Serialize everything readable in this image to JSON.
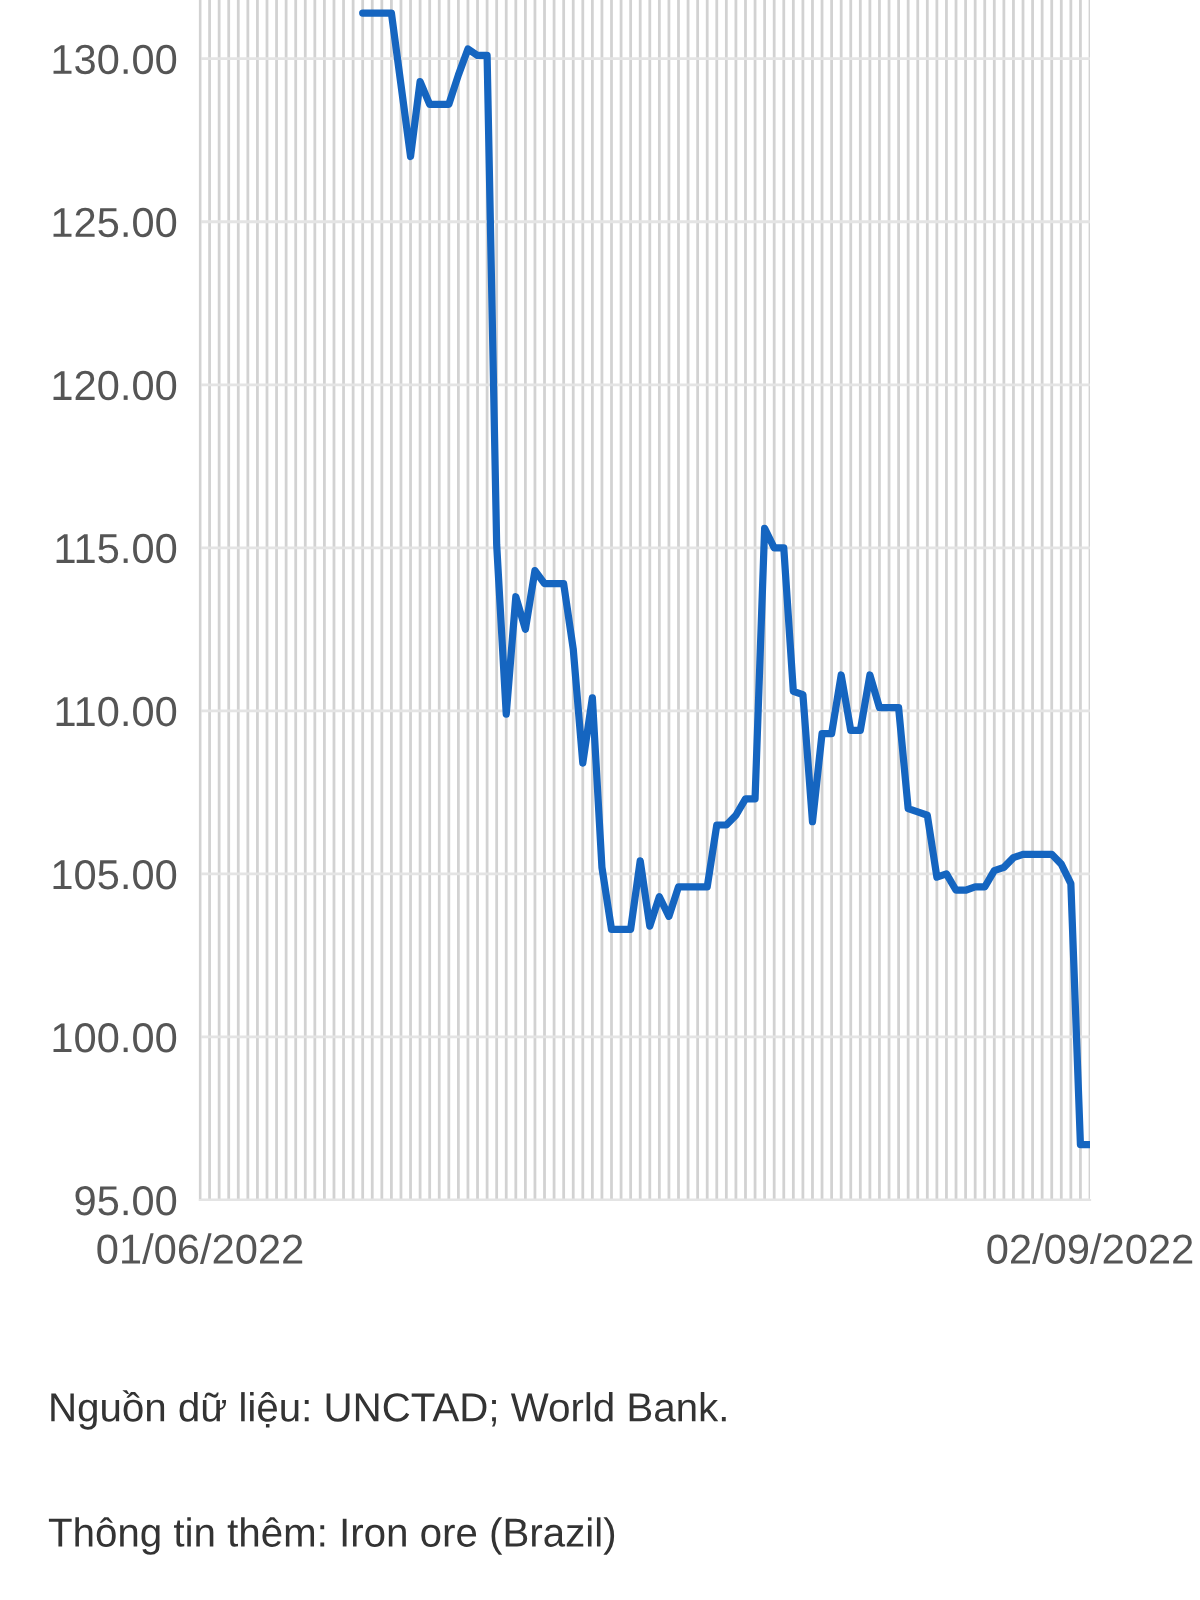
{
  "chart_data": {
    "type": "line",
    "x": [
      "2022-06-18",
      "2022-06-21",
      "2022-06-23",
      "2022-06-24",
      "2022-06-25",
      "2022-06-27",
      "2022-06-28",
      "2022-06-29",
      "2022-06-30",
      "2022-07-01",
      "2022-07-02",
      "2022-07-03",
      "2022-07-04",
      "2022-07-05",
      "2022-07-06",
      "2022-07-07",
      "2022-07-09",
      "2022-07-10",
      "2022-07-11",
      "2022-07-12",
      "2022-07-13",
      "2022-07-14",
      "2022-07-16",
      "2022-07-17",
      "2022-07-18",
      "2022-07-19",
      "2022-07-20",
      "2022-07-21",
      "2022-07-24",
      "2022-07-25",
      "2022-07-26",
      "2022-07-27",
      "2022-07-28",
      "2022-07-29",
      "2022-07-30",
      "2022-07-31",
      "2022-08-01",
      "2022-08-02",
      "2022-08-03",
      "2022-08-04",
      "2022-08-05",
      "2022-08-06",
      "2022-08-07",
      "2022-08-08",
      "2022-08-09",
      "2022-08-10",
      "2022-08-11",
      "2022-08-13",
      "2022-08-14",
      "2022-08-15",
      "2022-08-16",
      "2022-08-17",
      "2022-08-18",
      "2022-08-19",
      "2022-08-20",
      "2022-08-21",
      "2022-08-22",
      "2022-08-23",
      "2022-08-24",
      "2022-08-25",
      "2022-08-26",
      "2022-08-29",
      "2022-08-30",
      "2022-08-31",
      "2022-09-01",
      "2022-09-02"
    ],
    "series": [
      {
        "color": "#1565c0",
        "values": [
          131.4,
          131.4,
          127.0,
          129.3,
          128.6,
          128.6,
          129.5,
          130.3,
          130.1,
          130.1,
          115.1,
          109.9,
          113.5,
          112.5,
          114.3,
          113.9,
          113.9,
          111.9,
          108.4,
          110.4,
          105.2,
          103.3,
          103.3,
          105.4,
          103.4,
          104.3,
          103.7,
          104.6,
          104.6,
          106.5,
          106.5,
          106.8,
          107.3,
          107.3,
          115.6,
          115.0,
          115.0,
          110.6,
          110.5,
          106.6,
          109.3,
          109.3,
          111.1,
          109.4,
          109.4,
          111.1,
          110.1,
          110.1,
          107.0,
          106.9,
          106.8,
          104.9,
          105.0,
          104.5,
          104.5,
          104.6,
          104.6,
          105.1,
          105.2,
          105.5,
          105.6,
          105.6,
          105.3,
          104.7,
          96.7,
          96.7
        ]
      }
    ],
    "xlim": [
      "2022-06-01",
      "2022-09-02"
    ],
    "xticks": [
      {
        "value": "2022-06-01",
        "label": "01/06/2022"
      },
      {
        "value": "2022-06-02",
        "label": null
      },
      {
        "value": "2022-06-03",
        "label": null
      },
      {
        "value": "2022-06-04",
        "label": null
      },
      {
        "value": "2022-06-05",
        "label": null
      },
      {
        "value": "2022-06-06",
        "label": null
      },
      {
        "value": "2022-06-07",
        "label": null
      },
      {
        "value": "2022-06-08",
        "label": null
      },
      {
        "value": "2022-06-09",
        "label": null
      },
      {
        "value": "2022-06-10",
        "label": null
      },
      {
        "value": "2022-06-11",
        "label": null
      },
      {
        "value": "2022-06-12",
        "label": null
      },
      {
        "value": "2022-06-13",
        "label": null
      },
      {
        "value": "2022-06-14",
        "label": null
      },
      {
        "value": "2022-06-15",
        "label": null
      },
      {
        "value": "2022-06-16",
        "label": null
      },
      {
        "value": "2022-06-17",
        "label": null
      },
      {
        "value": "2022-06-18",
        "label": null
      },
      {
        "value": "2022-06-19",
        "label": null
      },
      {
        "value": "2022-06-20",
        "label": null
      },
      {
        "value": "2022-06-21",
        "label": null
      },
      {
        "value": "2022-06-22",
        "label": null
      },
      {
        "value": "2022-06-23",
        "label": null
      },
      {
        "value": "2022-06-24",
        "label": null
      },
      {
        "value": "2022-06-25",
        "label": null
      },
      {
        "value": "2022-06-26",
        "label": null
      },
      {
        "value": "2022-06-27",
        "label": null
      },
      {
        "value": "2022-06-28",
        "label": null
      },
      {
        "value": "2022-06-29",
        "label": null
      },
      {
        "value": "2022-06-30",
        "label": null
      },
      {
        "value": "2022-07-01",
        "label": null
      },
      {
        "value": "2022-07-02",
        "label": null
      },
      {
        "value": "2022-07-03",
        "label": null
      },
      {
        "value": "2022-07-04",
        "label": null
      },
      {
        "value": "2022-07-05",
        "label": null
      },
      {
        "value": "2022-07-06",
        "label": null
      },
      {
        "value": "2022-07-07",
        "label": null
      },
      {
        "value": "2022-07-08",
        "label": null
      },
      {
        "value": "2022-07-09",
        "label": null
      },
      {
        "value": "2022-07-10",
        "label": null
      },
      {
        "value": "2022-07-11",
        "label": null
      },
      {
        "value": "2022-07-12",
        "label": null
      },
      {
        "value": "2022-07-13",
        "label": null
      },
      {
        "value": "2022-07-14",
        "label": null
      },
      {
        "value": "2022-07-15",
        "label": null
      },
      {
        "value": "2022-07-16",
        "label": null
      },
      {
        "value": "2022-07-17",
        "label": null
      },
      {
        "value": "2022-07-18",
        "label": null
      },
      {
        "value": "2022-07-19",
        "label": null
      },
      {
        "value": "2022-07-20",
        "label": null
      },
      {
        "value": "2022-07-21",
        "label": null
      },
      {
        "value": "2022-07-22",
        "label": null
      },
      {
        "value": "2022-07-23",
        "label": null
      },
      {
        "value": "2022-07-24",
        "label": null
      },
      {
        "value": "2022-07-25",
        "label": null
      },
      {
        "value": "2022-07-26",
        "label": null
      },
      {
        "value": "2022-07-27",
        "label": null
      },
      {
        "value": "2022-07-28",
        "label": null
      },
      {
        "value": "2022-07-29",
        "label": null
      },
      {
        "value": "2022-07-30",
        "label": null
      },
      {
        "value": "2022-07-31",
        "label": null
      },
      {
        "value": "2022-08-01",
        "label": null
      },
      {
        "value": "2022-08-02",
        "label": null
      },
      {
        "value": "2022-08-03",
        "label": null
      },
      {
        "value": "2022-08-04",
        "label": null
      },
      {
        "value": "2022-08-05",
        "label": null
      },
      {
        "value": "2022-08-06",
        "label": null
      },
      {
        "value": "2022-08-07",
        "label": null
      },
      {
        "value": "2022-08-08",
        "label": null
      },
      {
        "value": "2022-08-09",
        "label": null
      },
      {
        "value": "2022-08-10",
        "label": null
      },
      {
        "value": "2022-08-11",
        "label": null
      },
      {
        "value": "2022-08-12",
        "label": null
      },
      {
        "value": "2022-08-13",
        "label": null
      },
      {
        "value": "2022-08-14",
        "label": null
      },
      {
        "value": "2022-08-15",
        "label": null
      },
      {
        "value": "2022-08-16",
        "label": null
      },
      {
        "value": "2022-08-17",
        "label": null
      },
      {
        "value": "2022-08-18",
        "label": null
      },
      {
        "value": "2022-08-19",
        "label": null
      },
      {
        "value": "2022-08-20",
        "label": null
      },
      {
        "value": "2022-08-21",
        "label": null
      },
      {
        "value": "2022-08-22",
        "label": null
      },
      {
        "value": "2022-08-23",
        "label": null
      },
      {
        "value": "2022-08-24",
        "label": null
      },
      {
        "value": "2022-08-25",
        "label": null
      },
      {
        "value": "2022-08-26",
        "label": null
      },
      {
        "value": "2022-08-27",
        "label": null
      },
      {
        "value": "2022-08-28",
        "label": null
      },
      {
        "value": "2022-08-29",
        "label": null
      },
      {
        "value": "2022-08-30",
        "label": null
      },
      {
        "value": "2022-08-31",
        "label": null
      },
      {
        "value": "2022-09-01",
        "label": null
      },
      {
        "value": "2022-09-02",
        "label": "02/09/2022"
      }
    ],
    "ylim": [
      95,
      131.8
    ],
    "yticks": [
      {
        "value": 95,
        "label": "95.00"
      },
      {
        "value": 100,
        "label": "100.00"
      },
      {
        "value": 105,
        "label": "105.00"
      },
      {
        "value": 110,
        "label": "110.00"
      },
      {
        "value": 115,
        "label": "115.00"
      },
      {
        "value": 120,
        "label": "120.00"
      },
      {
        "value": 125,
        "label": "125.00"
      },
      {
        "value": 130,
        "label": "130.00"
      }
    ],
    "grid": true,
    "annotations": [
      "Nguồn dữ liệu: UNCTAD; World Bank.",
      "Thông tin thêm: Iron ore (Brazil)"
    ]
  }
}
